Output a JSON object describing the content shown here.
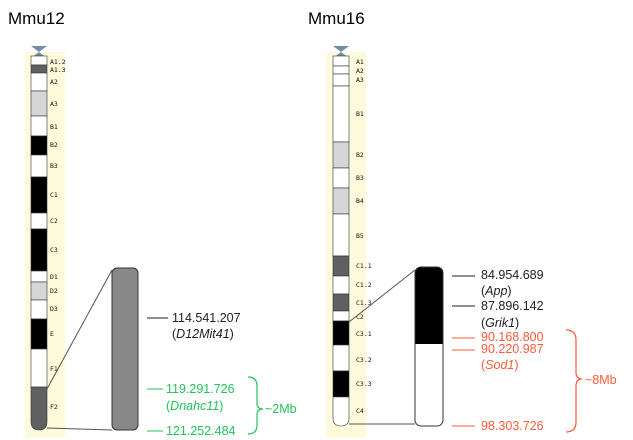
{
  "colors": {
    "highlight": "#fdfbdc",
    "black": "#000000",
    "dark_gray": "#606060",
    "mid_gray": "#888888",
    "light_gray": "#d6d6d6",
    "white": "#ffffff",
    "centromere": "#6f8fa6",
    "green": "#22c35a",
    "red": "#ff5a3a",
    "text": "#222222"
  },
  "panels": [
    {
      "id": "mmu12",
      "title": "Mmu12",
      "bands": [
        {
          "name": "A1.2",
          "stain": "white"
        },
        {
          "name": "A1.3",
          "stain": "gray"
        },
        {
          "name": "A2",
          "stain": "white"
        },
        {
          "name": "A3",
          "stain": "light"
        },
        {
          "name": "B1",
          "stain": "white"
        },
        {
          "name": "B2",
          "stain": "black"
        },
        {
          "name": "B3",
          "stain": "white"
        },
        {
          "name": "C1",
          "stain": "black"
        },
        {
          "name": "C2",
          "stain": "white"
        },
        {
          "name": "C3",
          "stain": "black"
        },
        {
          "name": "D1",
          "stain": "white"
        },
        {
          "name": "D2",
          "stain": "light"
        },
        {
          "name": "D3",
          "stain": "white"
        },
        {
          "name": "E",
          "stain": "black"
        },
        {
          "name": "F1",
          "stain": "white"
        },
        {
          "name": "F2",
          "stain": "gray"
        }
      ],
      "labels": [
        {
          "text": "114.541.207",
          "color": "text"
        },
        {
          "text": "(D12Mit41)",
          "color": "text",
          "italic_core": "D12Mit41"
        },
        {
          "text": "119.291.726",
          "color": "green"
        },
        {
          "text": "(Dnahc11)",
          "color": "green",
          "italic_core": "Dnahc11"
        },
        {
          "text": "121.252.484",
          "color": "green"
        }
      ],
      "span_label": "~2Mb"
    },
    {
      "id": "mmu16",
      "title": "Mmu16",
      "bands": [
        {
          "name": "A1",
          "stain": "white"
        },
        {
          "name": "A2",
          "stain": "white"
        },
        {
          "name": "A3",
          "stain": "white"
        },
        {
          "name": "B1",
          "stain": "white"
        },
        {
          "name": "B2",
          "stain": "light"
        },
        {
          "name": "B3",
          "stain": "white"
        },
        {
          "name": "B4",
          "stain": "light"
        },
        {
          "name": "B5",
          "stain": "white"
        },
        {
          "name": "C1.1",
          "stain": "gray"
        },
        {
          "name": "C1.2",
          "stain": "white"
        },
        {
          "name": "C1.3",
          "stain": "gray"
        },
        {
          "name": "C2",
          "stain": "white"
        },
        {
          "name": "C3.1",
          "stain": "black"
        },
        {
          "name": "C3.2",
          "stain": "white"
        },
        {
          "name": "C3.3",
          "stain": "black"
        },
        {
          "name": "C4",
          "stain": "white"
        }
      ],
      "labels": [
        {
          "text": "84.954.689",
          "color": "text"
        },
        {
          "text": "(App)",
          "color": "text",
          "italic_core": "App"
        },
        {
          "text": "87.896.142",
          "color": "text"
        },
        {
          "text": "(Grik1)",
          "color": "text",
          "italic_core": "Grik1"
        },
        {
          "text": "90.168.800",
          "color": "red"
        },
        {
          "text": "90.220.987",
          "color": "red"
        },
        {
          "text": "(Sod1)",
          "color": "red",
          "italic_core": "Sod1"
        },
        {
          "text": "98.303.726",
          "color": "red"
        }
      ],
      "span_label": "~8Mb"
    }
  ]
}
